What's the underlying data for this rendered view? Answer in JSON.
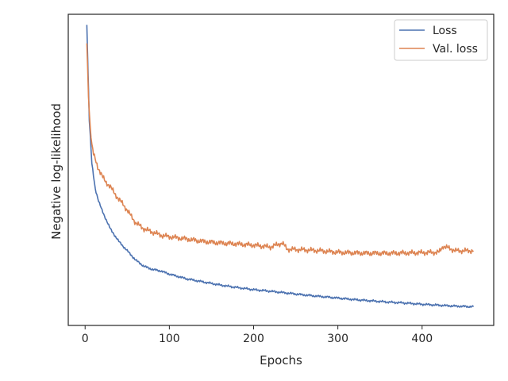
{
  "chart_data": {
    "type": "line",
    "title": "",
    "xlabel": "Epochs",
    "ylabel": "Negative log-likelihood",
    "xlim": [
      -20,
      485
    ],
    "ylim": [
      0,
      1
    ],
    "xticks": [
      0,
      100,
      200,
      300,
      400
    ],
    "yticks_shown": false,
    "grid": false,
    "legend": {
      "placement": "top-right"
    },
    "series": [
      {
        "name": "Loss",
        "color": "#4c72b0",
        "x": [
          2,
          5,
          8,
          12,
          16,
          20,
          25,
          30,
          35,
          40,
          45,
          50,
          60,
          70,
          80,
          90,
          100,
          120,
          140,
          160,
          180,
          200,
          220,
          240,
          260,
          280,
          300,
          320,
          340,
          360,
          380,
          400,
          420,
          440,
          461
        ],
        "y": [
          0.97,
          0.66,
          0.52,
          0.44,
          0.4,
          0.37,
          0.34,
          0.31,
          0.29,
          0.27,
          0.255,
          0.24,
          0.21,
          0.19,
          0.18,
          0.175,
          0.165,
          0.15,
          0.14,
          0.13,
          0.122,
          0.115,
          0.11,
          0.104,
          0.098,
          0.093,
          0.088,
          0.083,
          0.079,
          0.075,
          0.072,
          0.068,
          0.065,
          0.062,
          0.06
        ]
      },
      {
        "name": "Val. loss",
        "color": "#dd8452",
        "x": [
          2,
          4,
          6,
          8,
          10,
          15,
          20,
          25,
          30,
          35,
          40,
          45,
          50,
          55,
          60,
          70,
          80,
          90,
          100,
          120,
          140,
          160,
          180,
          200,
          220,
          234,
          240,
          260,
          280,
          300,
          320,
          340,
          360,
          380,
          400,
          420,
          425,
          440,
          461
        ],
        "y": [
          0.91,
          0.74,
          0.64,
          0.58,
          0.55,
          0.51,
          0.48,
          0.46,
          0.445,
          0.425,
          0.405,
          0.39,
          0.37,
          0.35,
          0.33,
          0.31,
          0.3,
          0.29,
          0.285,
          0.278,
          0.27,
          0.265,
          0.262,
          0.258,
          0.252,
          0.265,
          0.245,
          0.243,
          0.24,
          0.235,
          0.233,
          0.232,
          0.232,
          0.233,
          0.234,
          0.235,
          0.255,
          0.24,
          0.24
        ]
      }
    ]
  }
}
